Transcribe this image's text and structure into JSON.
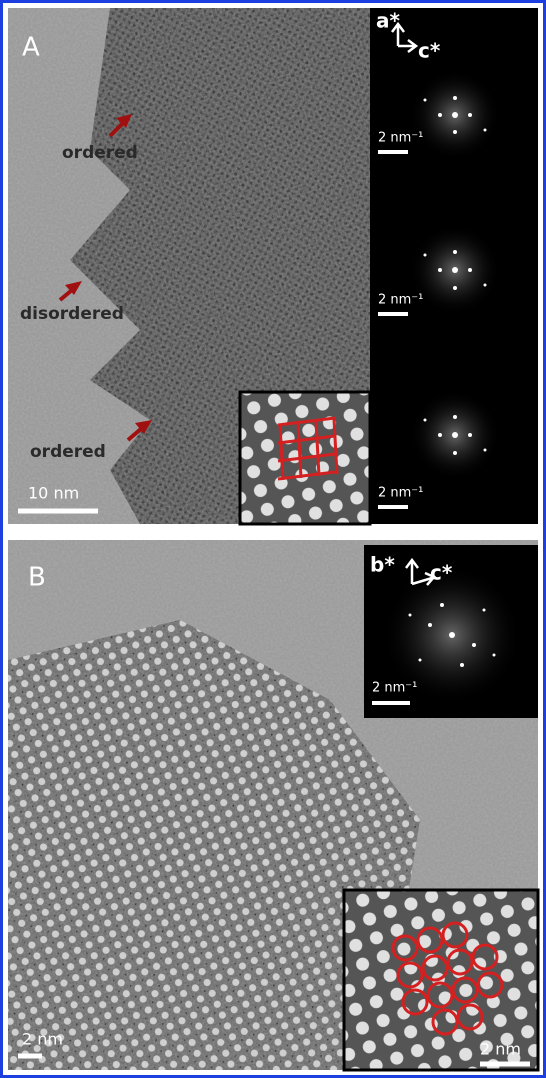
{
  "panel_a": {
    "label": "A",
    "annotations": [
      "ordered",
      "disordered",
      "ordered"
    ],
    "scale_bar": "10 nm",
    "fft_axes": [
      "a*",
      "c*"
    ],
    "fft_scale_bars": [
      "2 nm⁻¹",
      "2 nm⁻¹",
      "2 nm⁻¹"
    ]
  },
  "panel_b": {
    "label": "B",
    "fft_axes": [
      "b*",
      "c*"
    ],
    "fft_scale_bar": "2 nm⁻¹",
    "scale_bar": "2 nm",
    "inset_scale_bar": "2 nm"
  }
}
